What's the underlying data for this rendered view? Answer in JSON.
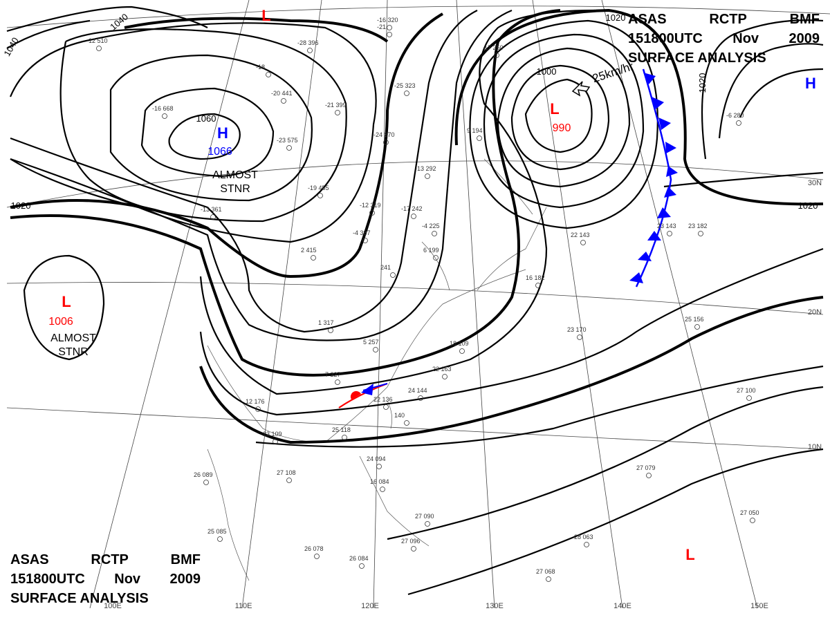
{
  "header": {
    "agency": "ASAS",
    "center": "RCTP",
    "cycle": "BMF",
    "valid_time": "151800UTC",
    "month": "Nov",
    "year": "2009",
    "product": "SURFACE ANALYSIS"
  },
  "pressure_centers": [
    {
      "id": "center-low-nw",
      "type": "L",
      "value": "",
      "color": "#ff0000"
    },
    {
      "id": "center-high-mongolia",
      "type": "H",
      "value": "1066",
      "color": "#0000ff",
      "note": "ALMOST STNR"
    },
    {
      "id": "center-low-kamchatka",
      "type": "L",
      "value": "990",
      "color": "#ff0000"
    },
    {
      "id": "center-high-ne",
      "type": "H",
      "value": "",
      "color": "#0000ff"
    },
    {
      "id": "center-low-tibet",
      "type": "L",
      "value": "1006",
      "color": "#ff0000",
      "note": "ALMOST STNR"
    },
    {
      "id": "center-low-pacific",
      "type": "L",
      "value": "",
      "color": "#ff0000"
    }
  ],
  "isobar_labels": [
    "1040",
    "1040",
    "1060",
    "1020",
    "1020",
    "1000",
    "1020",
    "1020"
  ],
  "motion_label": "25km/hr",
  "latitude_labels": [
    "30N",
    "20N",
    "10N"
  ],
  "longitude_labels": [
    "100E",
    "110E",
    "120E",
    "130E",
    "140E",
    "150E"
  ],
  "station_obs": [
    "-12 510",
    "-28 396",
    "-18",
    "-16 320",
    "-21",
    "-25 323",
    "-20 441",
    "-21 399",
    "-16 668",
    "-24 370",
    "-23 575",
    "-19 455",
    "-13 361",
    "-12 319",
    "-17 242",
    "-13 292",
    "-4 225",
    "-4 387",
    "2 415",
    "6 199",
    "241",
    "5 257",
    "1 317",
    "7 227",
    "22 163",
    "22 136",
    "24 144",
    "140",
    "18 109",
    "25 118",
    "23 109",
    "12 176",
    "26 089",
    "27 108",
    "24 094",
    "16 084",
    "25 085",
    "26 078",
    "26 084",
    "27 090",
    "27 096",
    "27 068",
    "28 063",
    "27 079",
    "27 050",
    "27 100",
    "25 156",
    "23 170",
    "16 182",
    "22 143",
    "23 182",
    "23 143",
    "9 194",
    "17 250",
    "-6 280"
  ],
  "colors": {
    "low": "#ff0000",
    "high": "#0000ff",
    "cold_front": "#0000ff",
    "warm_front": "#ff0000",
    "isobar": "#000000"
  }
}
